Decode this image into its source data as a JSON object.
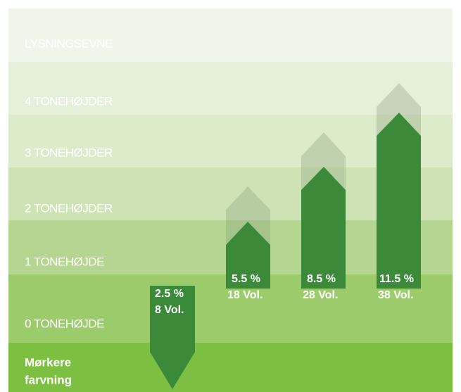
{
  "levels": [
    "LYSNINGSEVNE",
    "4 TONEHØJDER",
    "3 TONEHØJDER",
    "2 TONEHØJDER",
    "1 TONEHØJDE",
    "0 TONEHØJDE"
  ],
  "bottom_label": [
    "Mørkere",
    "farvning"
  ],
  "arrows": [
    {
      "percent": "2.5 %",
      "volume": "8 Vol."
    },
    {
      "percent": "5.5 %",
      "volume": "18 Vol."
    },
    {
      "percent": "8.5 %",
      "volume": "28 Vol."
    },
    {
      "percent": "11.5 %",
      "volume": "38 Vol."
    }
  ]
}
